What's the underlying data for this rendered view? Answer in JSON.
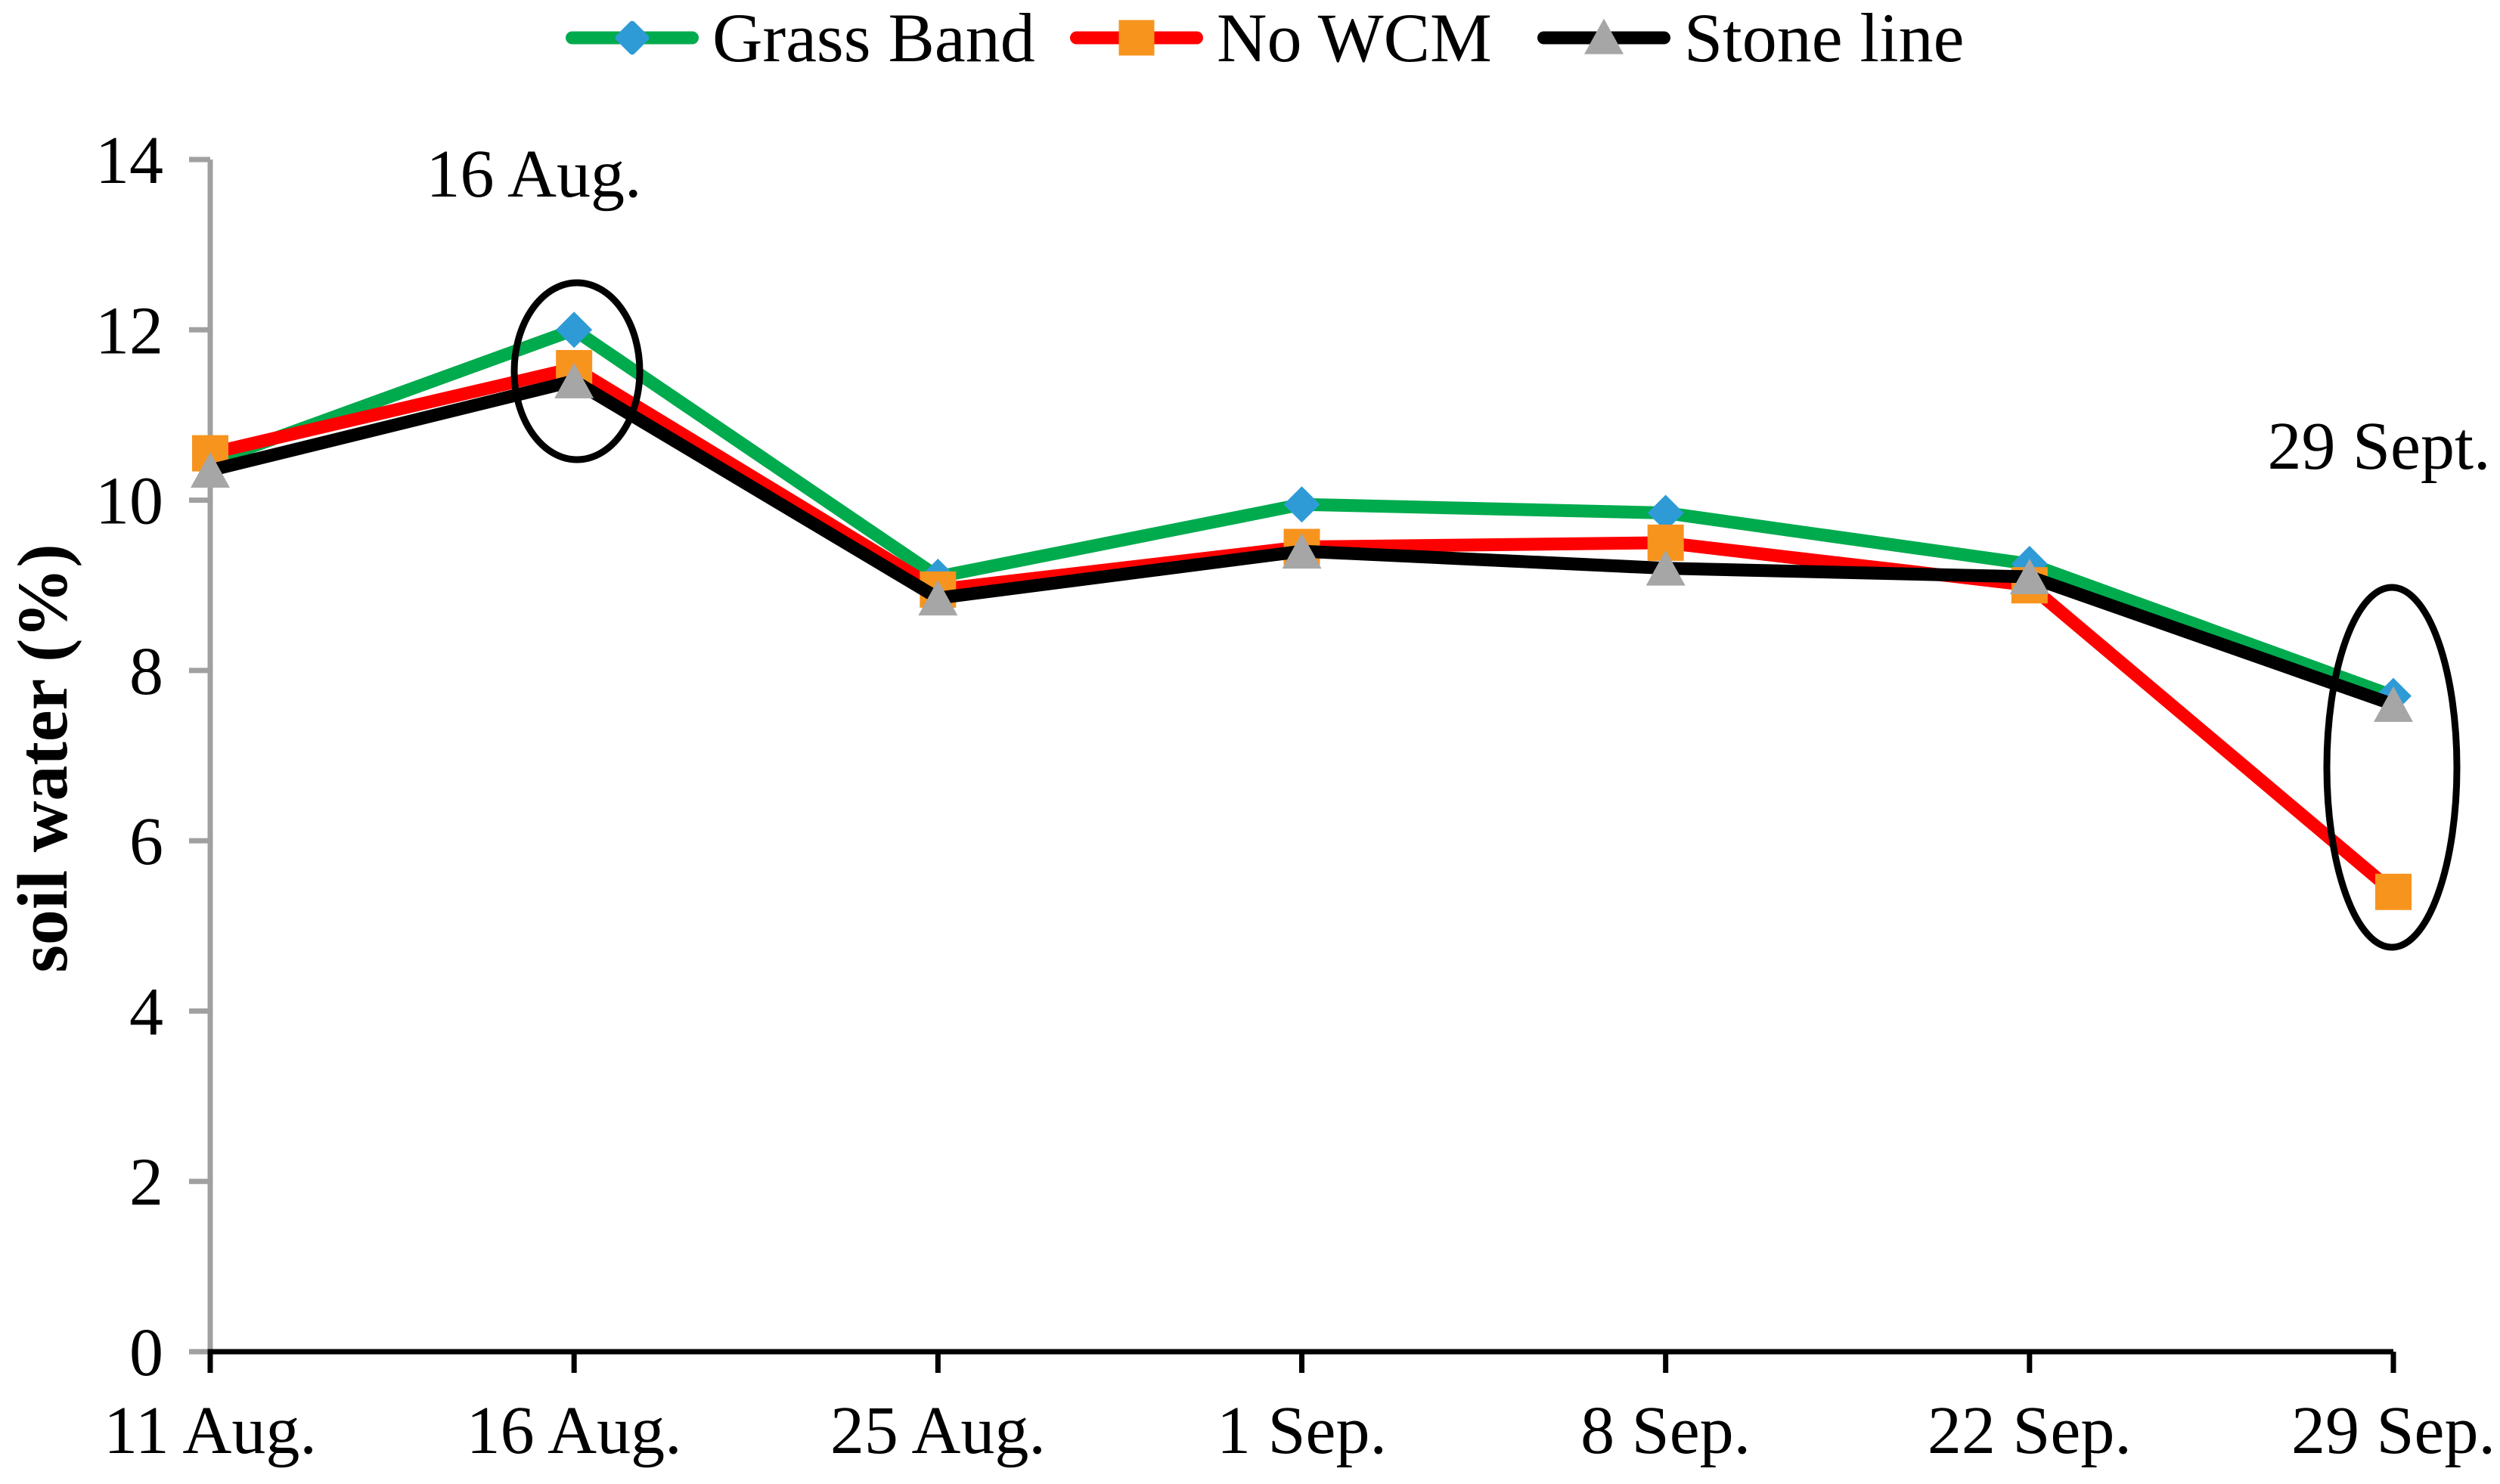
{
  "figure": {
    "background": "#FFFFFF"
  },
  "chart_data": {
    "type": "line",
    "title": "",
    "xlabel": "",
    "ylabel": "soil water (%)",
    "ylim": [
      0,
      14
    ],
    "yticks": [
      0,
      2,
      4,
      6,
      8,
      10,
      12,
      14
    ],
    "categories": [
      "11 Aug.",
      "16 Aug.",
      "25 Aug.",
      "1 Sep.",
      "8 Sep.",
      "22 Sep.",
      "29 Sep."
    ],
    "series": [
      {
        "name": "Grass Band",
        "line_color": "#00AB4E",
        "marker": "diamond",
        "marker_color": "#2E9BD6",
        "values": [
          10.45,
          12.0,
          9.1,
          9.95,
          9.85,
          9.25,
          7.7
        ]
      },
      {
        "name": "No WCM",
        "line_color": "#FF0000",
        "marker": "square",
        "marker_color": "#F7941E",
        "values": [
          10.55,
          11.55,
          8.95,
          9.45,
          9.5,
          9.0,
          5.4
        ]
      },
      {
        "name": "Stone line",
        "line_color": "#000000",
        "marker": "triangle",
        "marker_color": "#A6A6A6",
        "values": [
          10.35,
          11.4,
          8.85,
          9.4,
          9.2,
          9.1,
          7.6
        ]
      }
    ],
    "legend_position": "top",
    "grid": false,
    "annotations": [
      {
        "text": "16 Aug.",
        "circled_category": "16 Aug."
      },
      {
        "text": "29 Sept.",
        "circled_category": "29 Sep."
      }
    ],
    "axis_colors": {
      "y_axis": "#A0A0A0",
      "x_axis": "#000000"
    }
  }
}
